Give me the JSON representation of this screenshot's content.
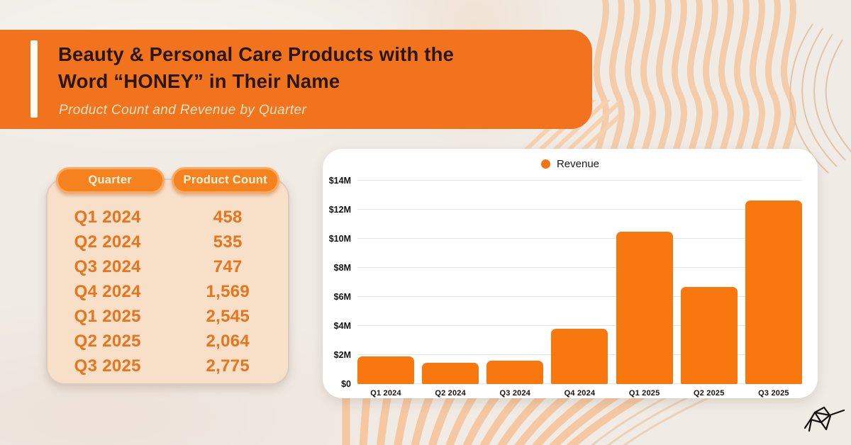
{
  "header": {
    "title_line1": "Beauty & Personal Care Products with the",
    "title_line2": "Word “HONEY” in Their Name",
    "subtitle": "Product Count and Revenue by Quarter"
  },
  "table": {
    "columns": [
      "Quarter",
      "Product Count"
    ],
    "rows": [
      [
        "Q1 2024",
        "458"
      ],
      [
        "Q2 2024",
        "535"
      ],
      [
        "Q3 2024",
        "747"
      ],
      [
        "Q4 2024",
        "1,569"
      ],
      [
        "Q1 2025",
        "2,545"
      ],
      [
        "Q2 2025",
        "2,064"
      ],
      [
        "Q3 2025",
        "2,775"
      ]
    ]
  },
  "chart_data": {
    "type": "bar",
    "title": "",
    "legend": [
      "Revenue"
    ],
    "legend_position": "top-center",
    "categories": [
      "Q1 2024",
      "Q2 2024",
      "Q3 2024",
      "Q4 2024",
      "Q1 2025",
      "Q2 2025",
      "Q3 2025"
    ],
    "series": [
      {
        "name": "Revenue",
        "values": [
          1.9,
          1.45,
          1.6,
          3.8,
          10.5,
          6.7,
          12.65
        ]
      }
    ],
    "unit": "USD millions",
    "xlabel": "",
    "ylabel": "",
    "ylim": [
      0,
      14
    ],
    "ytick_values": [
      0,
      2,
      4,
      6,
      8,
      10,
      12,
      14
    ],
    "yticks": [
      "$0",
      "$2M",
      "$4M",
      "$6M",
      "$8M",
      "$10M",
      "$12M",
      "$14M"
    ],
    "grid": true,
    "bar_color": "#F8770E"
  },
  "colors": {
    "banner_orange": "#F2731D",
    "bar_orange": "#F8770E",
    "pill_orange": "#F5821F",
    "pill_border": "#FCA95F",
    "table_bg": "#F8DFC8",
    "row_text": "#E8741C",
    "page_bg": "#F0EBE5",
    "wave_peach": "#F5C9A4",
    "title_text": "#2A170C",
    "subtitle_text": "#F2E4C0"
  },
  "logo": {
    "name": "hummingbird-logo"
  }
}
